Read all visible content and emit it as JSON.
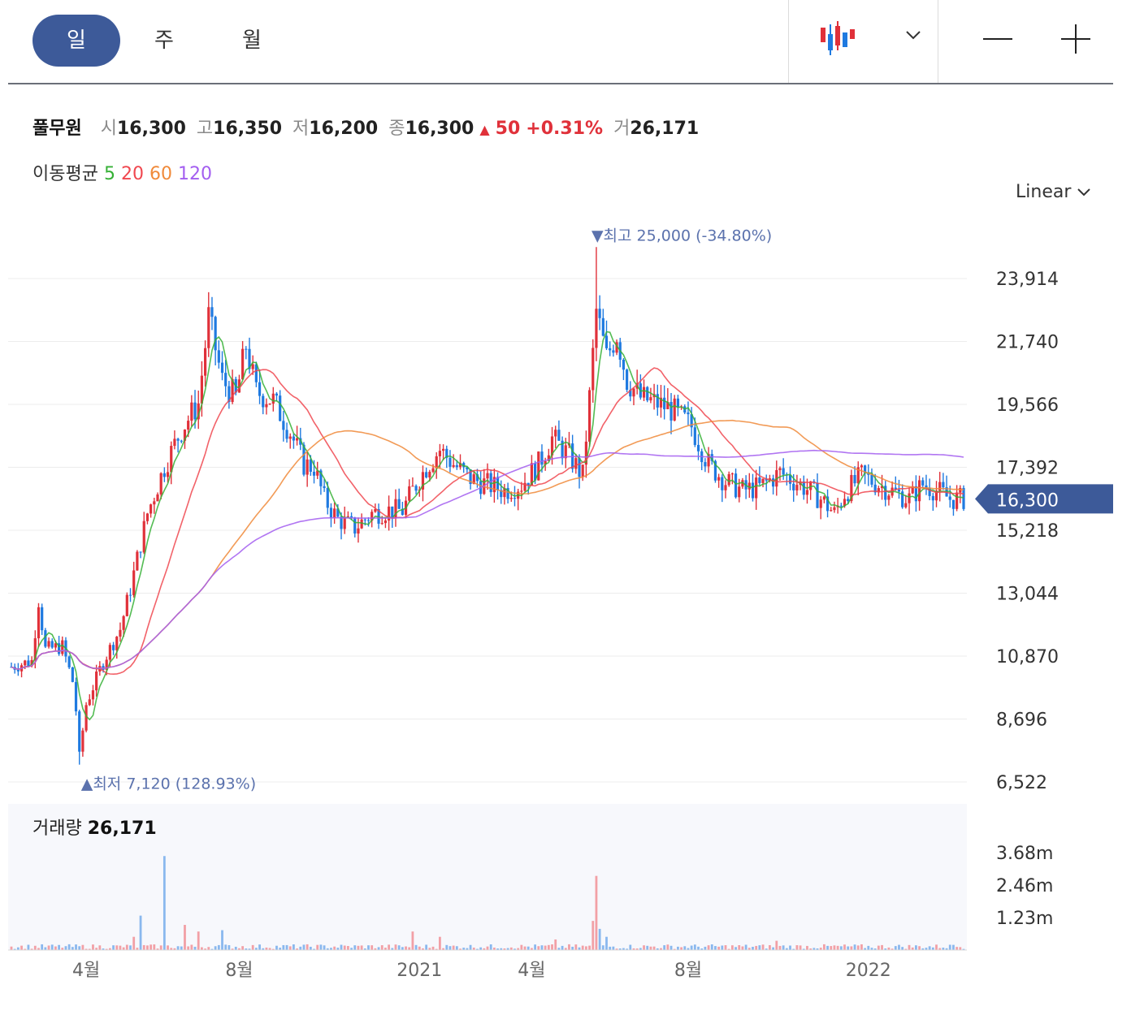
{
  "toolbar": {
    "tabs": [
      "일",
      "주",
      "월"
    ],
    "active_tab": "일",
    "chart_type_icon": "candlestick-icon",
    "dropdown_icon": "chevron-down-icon",
    "zoom_out_icon": "minus-icon",
    "zoom_in_icon": "plus-icon"
  },
  "quote": {
    "name": "풀무원",
    "open_label": "시",
    "open": "16,300",
    "high_label": "고",
    "high": "16,350",
    "low_label": "저",
    "low": "16,200",
    "close_label": "종",
    "close": "16,300",
    "change_arrow": "▲",
    "change": "50",
    "change_pct": "+0.31%",
    "volume_label": "거",
    "volume": "26,171"
  },
  "ma": {
    "label": "이동평균",
    "periods": [
      "5",
      "20",
      "60",
      "120"
    ],
    "colors": [
      "#35b035",
      "#f0474f",
      "#f08a3a",
      "#a35ef0"
    ]
  },
  "scale_mode": "Linear",
  "colors": {
    "up": "#e0313a",
    "down": "#1f7ae0",
    "accent": "#3d5a99",
    "annotation": "#5b72ad"
  },
  "chart_data": {
    "type": "candlestick",
    "y_ticks": [
      "23,914",
      "21,740",
      "19,566",
      "17,392",
      "15,218",
      "13,044",
      "10,870",
      "8,696",
      "6,522"
    ],
    "y_tick_values": [
      23914,
      21740,
      19566,
      17392,
      15218,
      13044,
      10870,
      8696,
      6522
    ],
    "x_ticks": [
      "4월",
      "8월",
      "2021",
      "4월",
      "8월",
      "2022"
    ],
    "x_tick_index": [
      22,
      67,
      120,
      153,
      199,
      252
    ],
    "n_bars": 281,
    "price_path": [
      [
        0,
        10500
      ],
      [
        6,
        10700
      ],
      [
        8,
        12800
      ],
      [
        10,
        11100
      ],
      [
        15,
        11200
      ],
      [
        18,
        10000
      ],
      [
        19,
        9000
      ],
      [
        20,
        7400
      ],
      [
        22,
        9200
      ],
      [
        26,
        10400
      ],
      [
        28,
        10900
      ],
      [
        32,
        11800
      ],
      [
        35,
        13200
      ],
      [
        40,
        15800
      ],
      [
        45,
        17400
      ],
      [
        50,
        18700
      ],
      [
        55,
        19600
      ],
      [
        58,
        22600
      ],
      [
        62,
        20400
      ],
      [
        66,
        19800
      ],
      [
        69,
        21600
      ],
      [
        72,
        20000
      ],
      [
        77,
        19700
      ],
      [
        82,
        18600
      ],
      [
        86,
        17500
      ],
      [
        89,
        17400
      ],
      [
        92,
        16300
      ],
      [
        96,
        15600
      ],
      [
        101,
        15300
      ],
      [
        106,
        15800
      ],
      [
        111,
        15900
      ],
      [
        115,
        15900
      ],
      [
        118,
        16600
      ],
      [
        122,
        17400
      ],
      [
        126,
        18000
      ],
      [
        130,
        17500
      ],
      [
        135,
        17000
      ],
      [
        140,
        16800
      ],
      [
        145,
        16600
      ],
      [
        150,
        16800
      ],
      [
        155,
        17500
      ],
      [
        159,
        18400
      ],
      [
        164,
        17800
      ],
      [
        168,
        17100
      ],
      [
        170,
        19800
      ],
      [
        172,
        22800
      ],
      [
        175,
        21200
      ],
      [
        178,
        22000
      ],
      [
        181,
        20400
      ],
      [
        185,
        19800
      ],
      [
        190,
        19600
      ],
      [
        194,
        19400
      ],
      [
        200,
        18800
      ],
      [
        205,
        17500
      ],
      [
        210,
        16900
      ],
      [
        215,
        16600
      ],
      [
        220,
        16700
      ],
      [
        226,
        17200
      ],
      [
        232,
        16800
      ],
      [
        238,
        16300
      ],
      [
        242,
        15800
      ],
      [
        245,
        16500
      ],
      [
        250,
        17100
      ],
      [
        255,
        16800
      ],
      [
        260,
        16500
      ],
      [
        264,
        16300
      ],
      [
        268,
        16800
      ],
      [
        272,
        16600
      ],
      [
        276,
        16300
      ],
      [
        280,
        16300
      ]
    ],
    "ma_periods": [
      5,
      20,
      60,
      120
    ],
    "high_annotation": {
      "arrow": "▼",
      "label": "최고",
      "value": "25,000",
      "pct": "(-34.80%)",
      "index": 172,
      "price": 25000
    },
    "low_annotation": {
      "arrow": "▲",
      "label": "최저",
      "value": "7,120",
      "pct": "(128.93%)",
      "index": 20,
      "price": 7120
    },
    "current_price_label": "16,300",
    "current_price": 16300,
    "volume": {
      "label": "거래량",
      "value": "26,171",
      "y_ticks": [
        "3.68m",
        "2.46m",
        "1.23m"
      ],
      "y_tick_values": [
        3680000,
        2460000,
        1230000
      ],
      "spikes": [
        [
          45,
          3550000
        ],
        [
          38,
          1300000
        ],
        [
          36,
          500000
        ],
        [
          51,
          950000
        ],
        [
          55,
          700000
        ],
        [
          62,
          750000
        ],
        [
          118,
          700000
        ],
        [
          126,
          500000
        ],
        [
          172,
          2800000
        ],
        [
          171,
          1100000
        ],
        [
          173,
          800000
        ],
        [
          175,
          500000
        ],
        [
          160,
          400000
        ],
        [
          225,
          350000
        ],
        [
          276,
          200000
        ]
      ]
    }
  }
}
